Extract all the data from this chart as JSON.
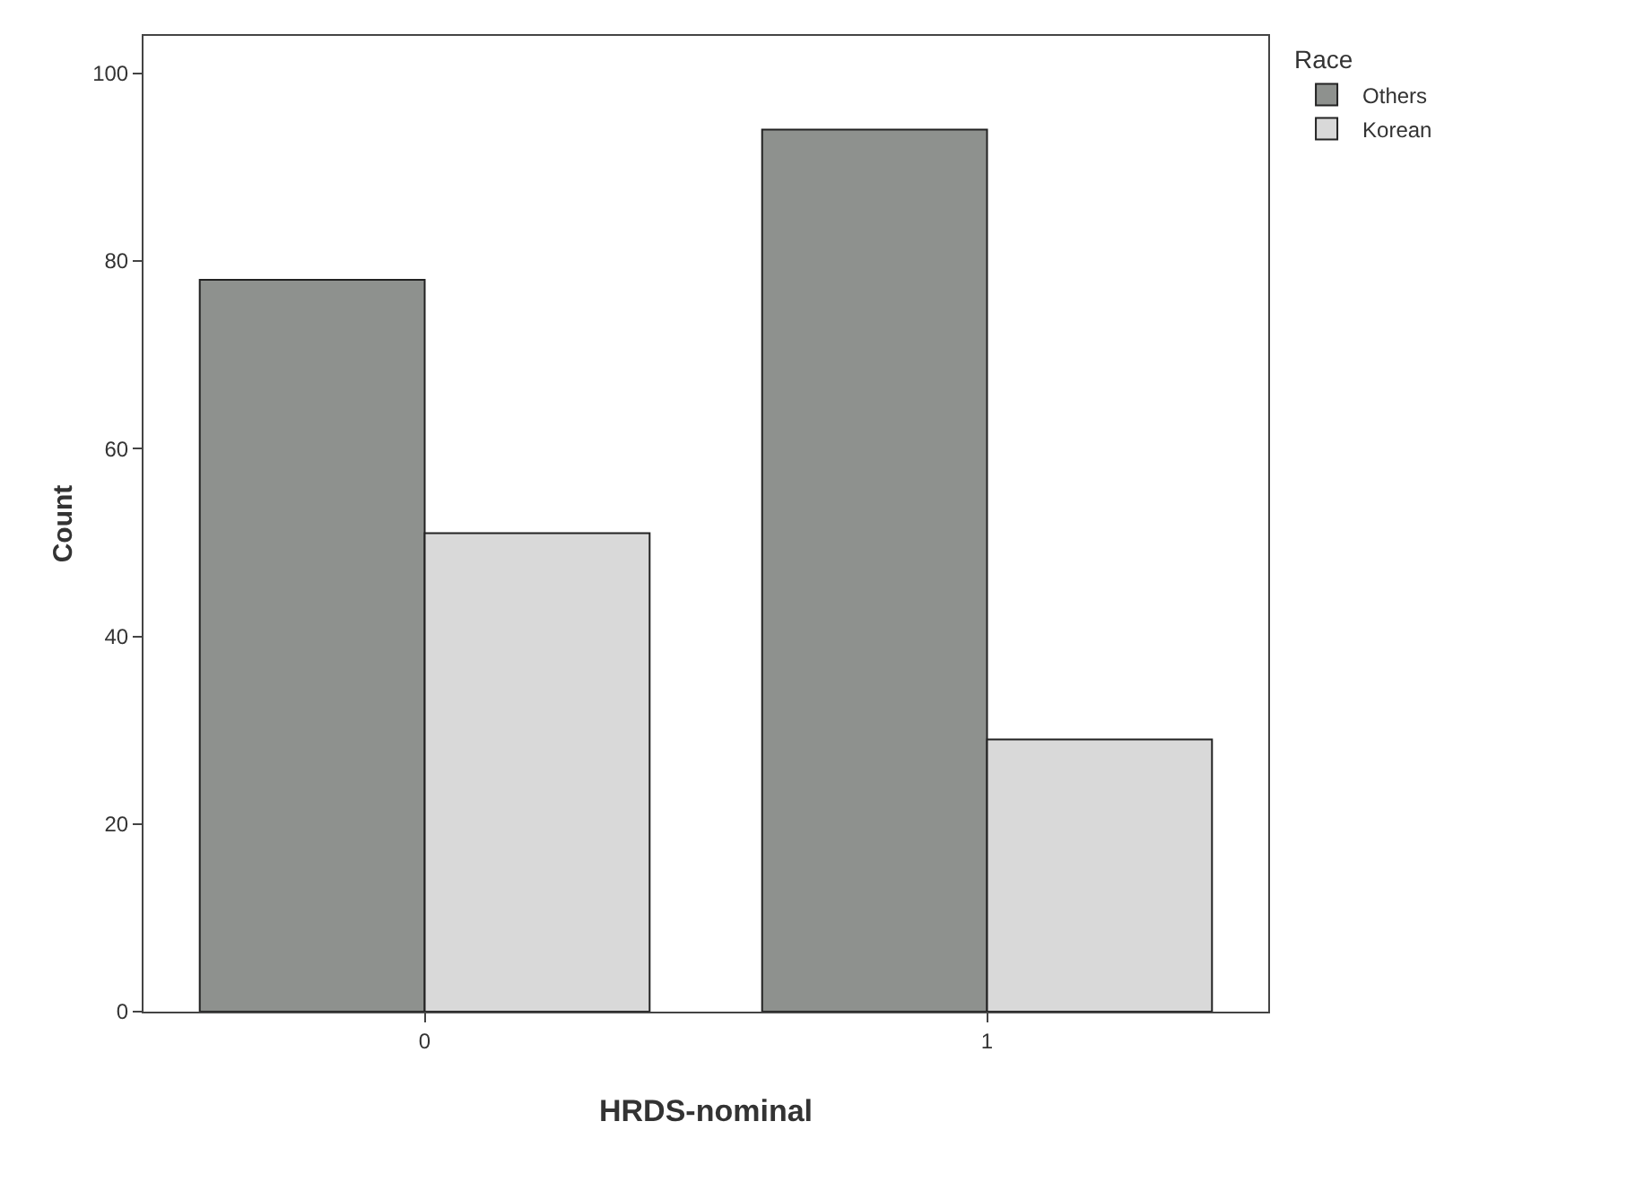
{
  "chart_data": {
    "type": "bar",
    "xlabel": "HRDS-nominal",
    "ylabel": "Count",
    "legend_title": "Race",
    "categories": [
      "0",
      "1"
    ],
    "series": [
      {
        "name": "Others",
        "color": "#8e918e",
        "values": [
          78,
          94
        ]
      },
      {
        "name": "Korean",
        "color": "#d9d9d9",
        "values": [
          51,
          29
        ]
      }
    ],
    "ylim": [
      0,
      104
    ],
    "yticks": [
      0,
      20,
      40,
      60,
      80,
      100
    ],
    "grid": false,
    "legend": "top right"
  }
}
